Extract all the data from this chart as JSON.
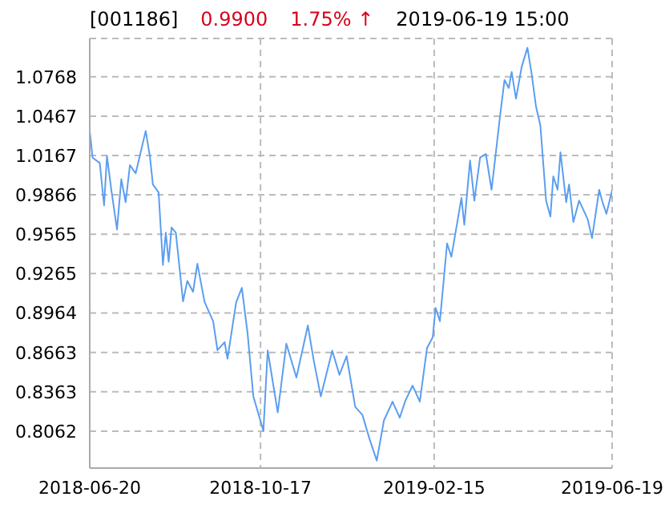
{
  "chart_data": {
    "type": "line",
    "title": "[001186]",
    "annotations": [
      "0.9900",
      "1.75% ↑",
      "2019-06-19 15:00"
    ],
    "x": [
      "2018-06-20",
      "2018-06-22",
      "2018-06-27",
      "2018-06-30",
      "2018-07-02",
      "2018-07-05",
      "2018-07-09",
      "2018-07-12",
      "2018-07-15",
      "2018-07-18",
      "2018-07-22",
      "2018-07-29",
      "2018-08-01",
      "2018-08-03",
      "2018-08-07",
      "2018-08-10",
      "2018-08-12",
      "2018-08-14",
      "2018-08-16",
      "2018-08-19",
      "2018-08-24",
      "2018-08-27",
      "2018-08-31",
      "2018-09-03",
      "2018-09-08",
      "2018-09-14",
      "2018-09-17",
      "2018-09-22",
      "2018-09-24",
      "2018-09-30",
      "2018-10-04",
      "2018-10-08",
      "2018-10-12",
      "2018-10-19",
      "2018-10-22",
      "2018-10-29",
      "2018-11-04",
      "2018-11-11",
      "2018-11-19",
      "2018-11-23",
      "2018-11-28",
      "2018-12-06",
      "2018-12-11",
      "2018-12-16",
      "2018-12-22",
      "2018-12-27",
      "2019-01-01",
      "2019-01-06",
      "2019-01-11",
      "2019-01-17",
      "2019-01-22",
      "2019-01-26",
      "2019-01-31",
      "2019-02-05",
      "2019-02-10",
      "2019-02-14",
      "2019-02-16",
      "2019-02-19",
      "2019-02-24",
      "2019-02-27",
      "2019-03-06",
      "2019-03-08",
      "2019-03-12",
      "2019-03-15",
      "2019-03-19",
      "2019-03-23",
      "2019-03-27",
      "2019-04-02",
      "2019-04-05",
      "2019-04-08",
      "2019-04-10",
      "2019-04-13",
      "2019-04-17",
      "2019-04-21",
      "2019-04-24",
      "2019-04-27",
      "2019-04-30",
      "2019-05-04",
      "2019-05-07",
      "2019-05-09",
      "2019-05-12",
      "2019-05-14",
      "2019-05-18",
      "2019-05-20",
      "2019-05-23",
      "2019-05-27",
      "2019-06-02",
      "2019-06-05",
      "2019-06-10",
      "2019-06-12",
      "2019-06-15",
      "2019-06-19"
    ],
    "series": [
      {
        "color": "#5b9ef0",
        "values": [
          1.0354,
          1.015,
          1.0109,
          0.9786,
          1.0163,
          0.9908,
          0.9601,
          0.9986,
          0.981,
          1.0093,
          1.0031,
          1.0354,
          1.0154,
          0.9945,
          0.9884,
          0.9331,
          0.9577,
          0.9356,
          0.9617,
          0.9577,
          0.9053,
          0.9209,
          0.9126,
          0.934,
          0.9049,
          0.8901,
          0.868,
          0.8742,
          0.8615,
          0.9045,
          0.9156,
          0.8807,
          0.8328,
          0.8063,
          0.8678,
          0.8205,
          0.873,
          0.8472,
          0.8869,
          0.8607,
          0.8328,
          0.8677,
          0.8492,
          0.8635,
          0.8247,
          0.8186,
          0.8001,
          0.7837,
          0.8144,
          0.8287,
          0.8165,
          0.8296,
          0.841,
          0.8287,
          0.8696,
          0.8779,
          0.9003,
          0.8901,
          0.9495,
          0.9393,
          0.9843,
          0.9638,
          1.0129,
          0.9822,
          1.015,
          1.0179,
          0.9905,
          1.0477,
          1.0743,
          1.0682,
          1.0805,
          1.06,
          1.0845,
          1.0989,
          1.0784,
          1.0538,
          1.0396,
          0.9822,
          0.97,
          1.0007,
          0.9905,
          1.0191,
          0.981,
          0.9945,
          0.9659,
          0.9822,
          0.9679,
          0.9536,
          0.9905,
          0.9822,
          0.9721,
          0.99
        ]
      }
    ],
    "xlim": [
      "2018-06-20",
      "2019-06-19"
    ],
    "xticks": [
      "2018-06-20",
      "2018-10-17",
      "2019-02-15",
      "2019-06-19"
    ],
    "ylim": [
      0.778,
      1.106
    ],
    "yticks": [
      0.8062,
      0.8363,
      0.8663,
      0.8964,
      0.9265,
      0.9565,
      0.9866,
      1.0167,
      1.0467,
      1.0768
    ],
    "grid": true,
    "line_style": "solid",
    "marker": "none"
  }
}
